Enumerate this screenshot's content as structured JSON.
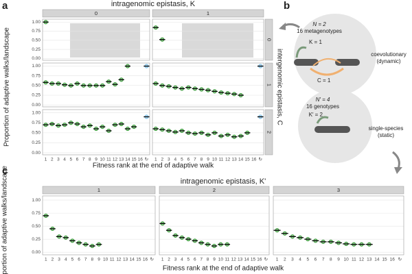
{
  "panel_labels": [
    "a",
    "b",
    "c"
  ],
  "chart_data": [
    {
      "type": "facet-dot",
      "title": "intragenomic epistasis, K",
      "xlabel": "Fitness rank at the end of adaptive walk",
      "ylabel": "Proportion of adaptive walks/landscape",
      "row_title": "intergenomic epistasis, C",
      "col_labels": [
        "0",
        "1"
      ],
      "row_labels": [
        "0",
        "1",
        "2"
      ],
      "categories": [
        "1",
        "2",
        "3",
        "4",
        "5",
        "6",
        "7",
        "8",
        "9",
        "10",
        "11",
        "12",
        "13",
        "14",
        "15",
        "16",
        "↻"
      ],
      "color": "#3a9a3a",
      "highlight_color": "#7bbfe8",
      "ylim": [
        -0.05,
        1.08
      ],
      "yticks": [
        {
          "value": 0,
          "label": "0.00"
        },
        {
          "value": 0.25,
          "label": "0.25"
        },
        {
          "value": 0.5,
          "label": "0.50"
        },
        {
          "value": 0.75,
          "label": "0.75"
        },
        {
          "value": 1,
          "label": "1.00"
        }
      ],
      "grid": true,
      "cells": [
        [
          [
            1.0,
            null,
            null,
            null,
            null,
            null,
            null,
            null,
            null,
            null,
            null,
            null,
            null,
            null,
            null,
            null,
            null
          ],
          [
            0.85,
            0.52,
            null,
            null,
            null,
            null,
            null,
            null,
            null,
            null,
            null,
            null,
            null,
            null,
            null,
            null,
            null
          ]
        ],
        [
          [
            0.58,
            0.55,
            0.55,
            0.52,
            0.5,
            0.55,
            0.5,
            0.5,
            0.5,
            0.5,
            0.6,
            0.53,
            0.65,
            1.0,
            null,
            null,
            1.0
          ],
          [
            0.55,
            0.5,
            0.48,
            0.45,
            0.42,
            0.45,
            0.42,
            0.4,
            0.38,
            0.35,
            0.32,
            0.3,
            0.28,
            0.25,
            null,
            null,
            1.0
          ]
        ],
        [
          [
            0.7,
            0.72,
            0.68,
            0.7,
            0.75,
            0.72,
            0.65,
            0.68,
            0.6,
            0.65,
            0.55,
            0.7,
            0.72,
            0.6,
            0.65,
            null,
            0.9
          ],
          [
            0.6,
            0.58,
            0.55,
            0.52,
            0.55,
            0.5,
            0.48,
            0.5,
            0.45,
            0.5,
            0.42,
            0.45,
            0.4,
            0.42,
            0.5,
            null,
            0.9
          ]
        ]
      ]
    },
    {
      "type": "facet-dot",
      "title": "intragenomic epistasis, K'",
      "xlabel": "Fitness rank at the end of adaptive walk",
      "ylabel": "Proportion of adaptive walks/landscape",
      "col_labels": [
        "1",
        "2",
        "3"
      ],
      "categories": [
        "1",
        "2",
        "3",
        "4",
        "5",
        "6",
        "7",
        "8",
        "9",
        "10",
        "11",
        "12",
        "13",
        "14",
        "15",
        "16",
        "↻"
      ],
      "color": "#3a9a3a",
      "ylim": [
        -0.05,
        1.08
      ],
      "yticks": [
        {
          "value": 0,
          "label": "0.00"
        },
        {
          "value": 0.25,
          "label": "0.25"
        },
        {
          "value": 0.5,
          "label": "0.50"
        },
        {
          "value": 0.75,
          "label": "0.75"
        },
        {
          "value": 1,
          "label": "1.00"
        }
      ],
      "grid": true,
      "cells": [
        [
          [
            0.7,
            0.45,
            0.3,
            0.28,
            0.22,
            0.18,
            0.15,
            0.12,
            0.15,
            null,
            null,
            null,
            null,
            null,
            null,
            null,
            null
          ],
          [
            0.55,
            0.42,
            0.32,
            0.28,
            0.25,
            0.22,
            0.18,
            0.15,
            0.12,
            0.15,
            0.15,
            null,
            null,
            null,
            null,
            null,
            null
          ],
          [
            0.42,
            0.36,
            0.3,
            0.28,
            0.25,
            0.22,
            0.2,
            0.2,
            0.18,
            0.16,
            0.15,
            0.15,
            0.15,
            null,
            null,
            null,
            null
          ]
        ]
      ]
    }
  ],
  "diagram": {
    "coevo": {
      "n": "N = 2",
      "count": "16 metagenotypes",
      "k": "K = 1",
      "c": "C = 1",
      "kind": "coevolutionary",
      "mode": "(dynamic)"
    },
    "single": {
      "n": "N′ = 4",
      "count": "16 genotypes",
      "k": "K′ = 2",
      "kind": "single-species",
      "mode": "(static)"
    }
  }
}
